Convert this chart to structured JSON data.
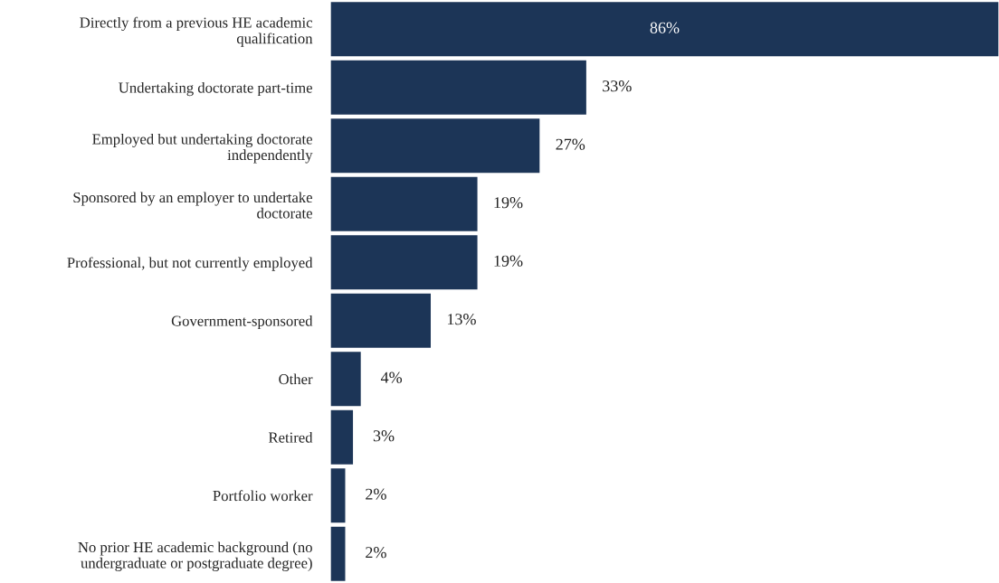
{
  "chart_data": {
    "type": "bar",
    "orientation": "horizontal",
    "categories": [
      "Directly from a previous HE academic\nqualification",
      "Undertaking doctorate part-time",
      "Employed but undertaking doctorate\nindependently",
      "Sponsored by an employer to undertake\ndoctorate",
      "Professional, but not currently employed",
      "Government-sponsored",
      "Other",
      "Retired",
      "Portfolio worker",
      "No prior HE academic background (no\nundergraduate or postgraduate degree)"
    ],
    "values": [
      86,
      33,
      27,
      19,
      19,
      13,
      4,
      3,
      2,
      2
    ],
    "value_labels": [
      "86%",
      "33%",
      "27%",
      "19%",
      "19%",
      "13%",
      "4%",
      "3%",
      "2%",
      "2%"
    ],
    "color": "#1c3557",
    "xlim": [
      0,
      86
    ],
    "tick_labels": "y",
    "grid": false,
    "legend": false
  }
}
